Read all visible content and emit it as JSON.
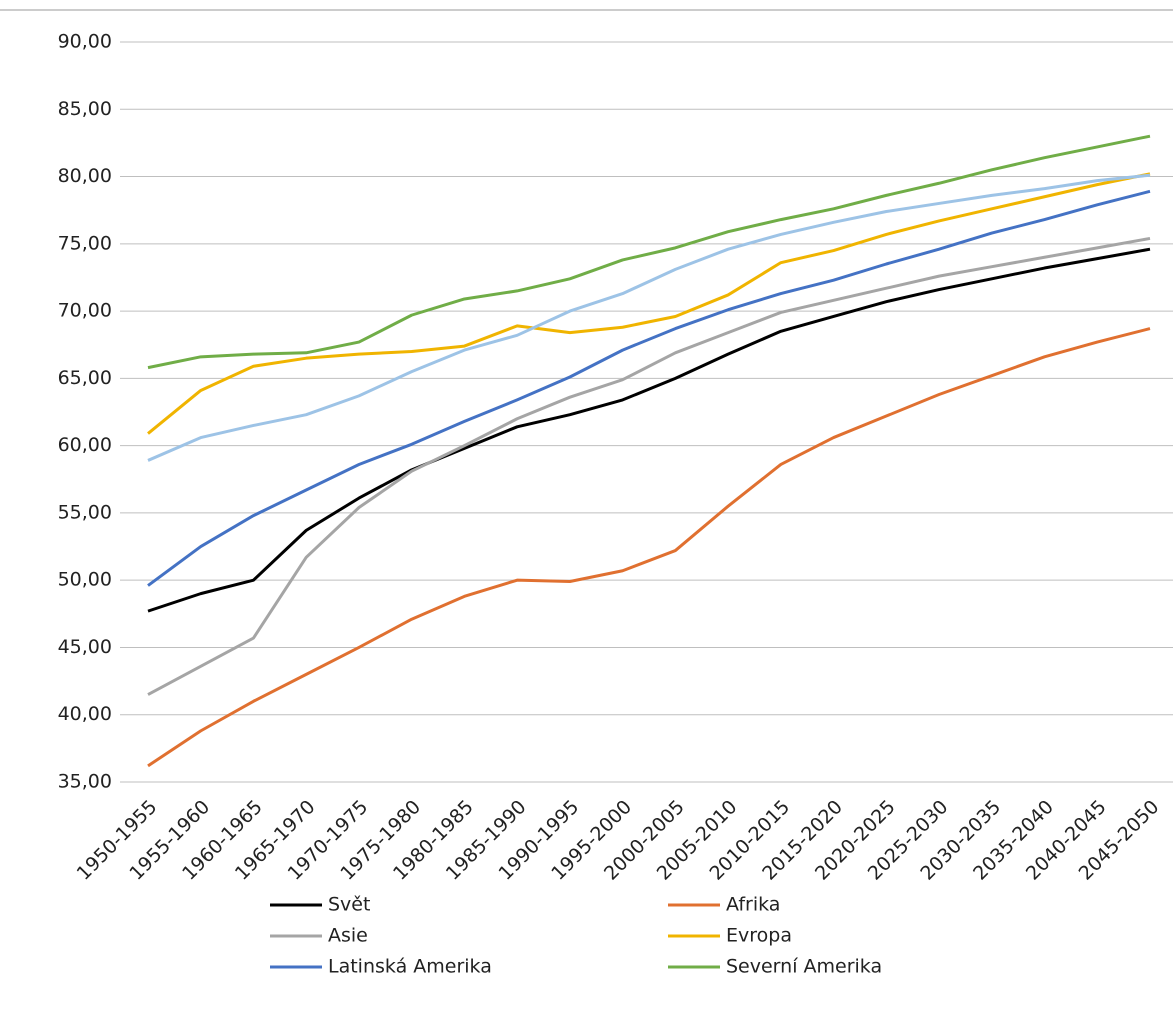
{
  "chart_data": {
    "type": "line",
    "categories": [
      "1950-1955",
      "1955-1960",
      "1960-1965",
      "1965-1970",
      "1970-1975",
      "1975-1980",
      "1980-1985",
      "1985-1990",
      "1990-1995",
      "1995-2000",
      "2000-2005",
      "2005-2010",
      "2010-2015",
      "2015-2020",
      "2020-2025",
      "2025-2030",
      "2030-2035",
      "2035-2040",
      "2040-2045",
      "2045-2050"
    ],
    "ylim": [
      35,
      90
    ],
    "yticks": [
      {
        "value": 35,
        "label": "35,00"
      },
      {
        "value": 40,
        "label": "40,00"
      },
      {
        "value": 45,
        "label": "45,00"
      },
      {
        "value": 50,
        "label": "50,00"
      },
      {
        "value": 55,
        "label": "55,00"
      },
      {
        "value": 60,
        "label": "60,00"
      },
      {
        "value": 65,
        "label": "65,00"
      },
      {
        "value": 70,
        "label": "70,00"
      },
      {
        "value": 75,
        "label": "75,00"
      },
      {
        "value": 80,
        "label": "80,00"
      },
      {
        "value": 85,
        "label": "85,00"
      },
      {
        "value": 90,
        "label": "90,00"
      }
    ],
    "grid": true,
    "legend": "bottom",
    "series": [
      {
        "name": "Svět",
        "color": "#000000",
        "values": [
          47.7,
          49.0,
          50.0,
          53.7,
          56.1,
          58.2,
          59.8,
          61.4,
          62.3,
          63.4,
          65.0,
          66.8,
          68.5,
          69.6,
          70.7,
          71.6,
          72.4,
          73.2,
          73.9,
          74.6
        ]
      },
      {
        "name": "Afrika",
        "color": "#e07030",
        "values": [
          36.2,
          38.8,
          41.0,
          43.0,
          45.0,
          47.1,
          48.8,
          50.0,
          49.9,
          50.7,
          52.2,
          55.5,
          58.6,
          60.6,
          62.2,
          63.8,
          65.2,
          66.6,
          67.7,
          68.7
        ]
      },
      {
        "name": "Asie",
        "color": "#a5a5a5",
        "values": [
          41.5,
          43.6,
          45.7,
          51.7,
          55.4,
          58.1,
          60.0,
          62.0,
          63.6,
          64.9,
          66.9,
          68.4,
          69.9,
          70.8,
          71.7,
          72.6,
          73.3,
          74.0,
          74.7,
          75.4
        ]
      },
      {
        "name": "Evropa",
        "color": "#f0b400",
        "values": [
          60.9,
          64.1,
          65.9,
          66.5,
          66.8,
          67.0,
          67.4,
          68.9,
          68.4,
          68.8,
          69.6,
          71.2,
          73.6,
          74.5,
          75.7,
          76.7,
          77.6,
          78.5,
          79.4,
          80.2
        ]
      },
      {
        "name": "Latinská Amerika",
        "color": "#4472c4",
        "values": [
          49.6,
          52.5,
          54.8,
          56.7,
          58.6,
          60.1,
          61.8,
          63.4,
          65.1,
          67.1,
          68.7,
          70.1,
          71.3,
          72.3,
          73.5,
          74.6,
          75.8,
          76.8,
          77.9,
          78.9
        ]
      },
      {
        "name": "Severní Amerika",
        "color": "#70ad47",
        "values": [
          65.8,
          66.6,
          66.8,
          66.9,
          67.7,
          69.7,
          70.9,
          71.5,
          72.4,
          73.8,
          74.7,
          75.9,
          76.8,
          77.6,
          78.6,
          79.5,
          80.5,
          81.4,
          82.2,
          83.0
        ]
      },
      {
        "color": "#9dc3e6",
        "values": [
          58.9,
          60.6,
          61.5,
          62.3,
          63.7,
          65.5,
          67.1,
          68.2,
          70.0,
          71.3,
          73.1,
          74.6,
          75.7,
          76.6,
          77.4,
          78.0,
          78.6,
          79.1,
          79.7,
          80.1
        ]
      }
    ]
  }
}
